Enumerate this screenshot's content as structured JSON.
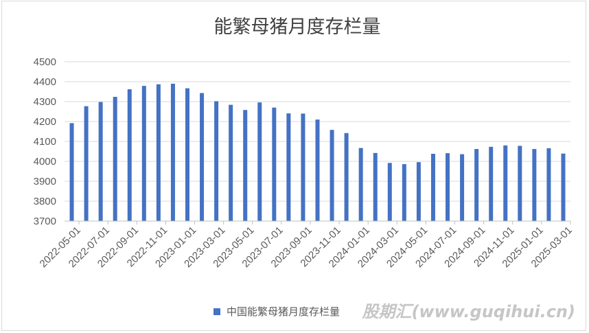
{
  "chart_data": {
    "type": "bar",
    "title": "能繁母猪月度存栏量",
    "legend": [
      "中国能繁母猪月度存栏量"
    ],
    "legend_position": "bottom",
    "grid": true,
    "color": "#4472c4",
    "ylim": [
      3700,
      4500
    ],
    "yticks": [
      3700,
      3800,
      3900,
      4000,
      4100,
      4200,
      4300,
      4400,
      4500
    ],
    "xtick_labels": [
      "2022-05-01",
      "2022-07-01",
      "2022-09-01",
      "2022-11-01",
      "2023-01-01",
      "2023-03-01",
      "2023-05-01",
      "2023-07-01",
      "2023-09-01",
      "2023-11-01",
      "2024-01-01",
      "2024-03-01",
      "2024-05-01",
      "2024-07-01",
      "2024-09-01",
      "2024-11-01",
      "2025-01-01",
      "2025-03-01"
    ],
    "categories": [
      "2022-05",
      "2022-06",
      "2022-07",
      "2022-08",
      "2022-09",
      "2022-10",
      "2022-11",
      "2022-12",
      "2023-01",
      "2023-02",
      "2023-03",
      "2023-04",
      "2023-05",
      "2023-06",
      "2023-07",
      "2023-08",
      "2023-09",
      "2023-10",
      "2023-11",
      "2023-12",
      "2024-01",
      "2024-02",
      "2024-03",
      "2024-04",
      "2024-05",
      "2024-06",
      "2024-07",
      "2024-08",
      "2024-09",
      "2024-10",
      "2024-11",
      "2024-12",
      "2025-01",
      "2025-02",
      "2025-03"
    ],
    "series": [
      {
        "name": "中国能繁母猪月度存栏量",
        "values": [
          4192,
          4277,
          4298,
          4324,
          4362,
          4379,
          4387,
          4390,
          4367,
          4343,
          4302,
          4284,
          4258,
          4296,
          4270,
          4241,
          4240,
          4210,
          4158,
          4142,
          4067,
          4042,
          3992,
          3986,
          3996,
          4038,
          4041,
          4036,
          4062,
          4073,
          4080,
          4078,
          4062,
          4066,
          4039
        ]
      }
    ]
  },
  "watermark": "股期汇(www.guqihui.cn)"
}
